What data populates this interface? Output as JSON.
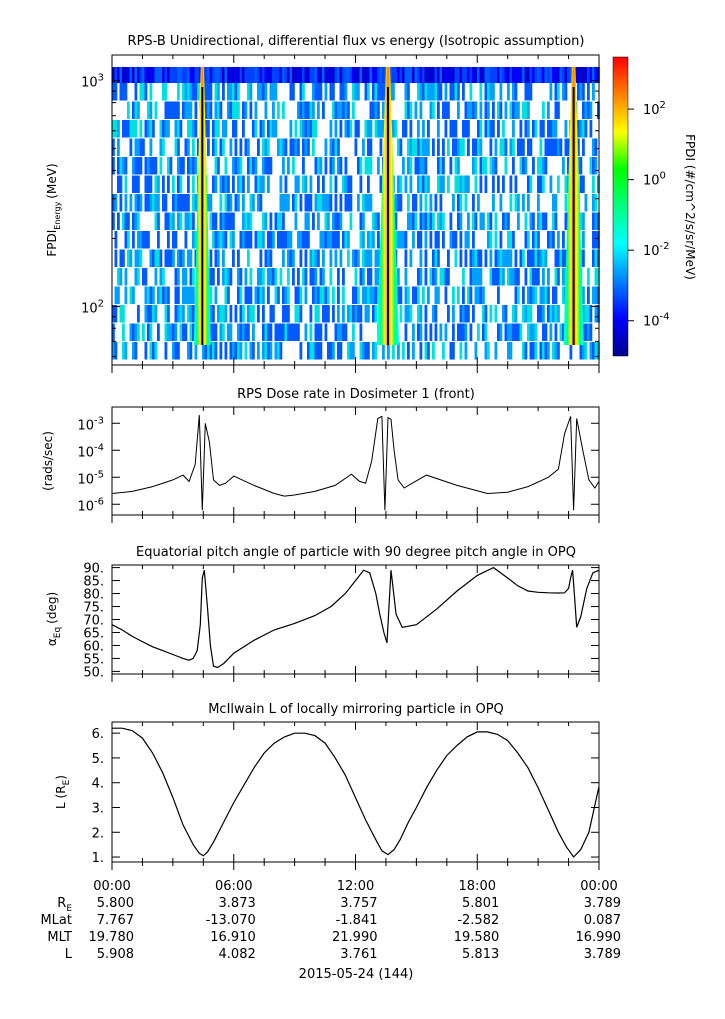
{
  "chart_data": [
    {
      "type": "heatmap",
      "title": "RPS-B  Unidirectional, differential flux vs energy (Isotropic assumption)",
      "ylabel": "FPDI",
      "ylabel_sub": "Energy",
      "ylabel_unit": "(MeV)",
      "yscale": "log",
      "ylim": [
        55,
        1300
      ],
      "ytick_base": "10",
      "yticks": [
        {
          "value": 100,
          "exp": "2"
        },
        {
          "value": 1000,
          "exp": "3"
        }
      ],
      "xlim": [
        0,
        24
      ],
      "colorbar": {
        "label": "FPDI (#/cm^2/s/sr/MeV)",
        "scale": "log",
        "range": [
          1e-05,
          3000
        ],
        "ticks": [
          {
            "value": 0.0001,
            "exp": "-4"
          },
          {
            "value": 0.01,
            "exp": "-2"
          },
          {
            "value": 1,
            "exp": "0"
          },
          {
            "value": 100,
            "exp": "2"
          }
        ],
        "colors": [
          "#00008f",
          "#0000ff",
          "#0080ff",
          "#00ffff",
          "#00ff80",
          "#00ff00",
          "#ffff00",
          "#ff8000",
          "#ff0000"
        ]
      },
      "flux_bands": [
        {
          "center_hour": 4.45,
          "base_half_width_hours": 0.42,
          "top_half_width_hours": 0.08,
          "gap_hour": 4.45
        },
        {
          "center_hour": 13.6,
          "base_half_width_hours": 0.55,
          "top_half_width_hours": 0.1,
          "gap_hour": 13.6
        },
        {
          "center_hour": 22.75,
          "base_half_width_hours": 0.5,
          "top_half_width_hours": 0.09,
          "gap_hour": 22.75
        }
      ]
    },
    {
      "type": "line",
      "title": "RPS  Dose rate in Dosimeter 1 (front)",
      "ylabel": "(rads/sec)",
      "yscale": "log",
      "ylim": [
        4e-07,
        0.004
      ],
      "ytick_base": "10",
      "yticks": [
        {
          "value": 1e-06,
          "exp": "-6"
        },
        {
          "value": 1e-05,
          "exp": "-5"
        },
        {
          "value": 0.0001,
          "exp": "-4"
        },
        {
          "value": 0.001,
          "exp": "-3"
        }
      ],
      "xlim": [
        0,
        24
      ],
      "x": [
        0,
        1,
        2,
        3,
        3.5,
        3.8,
        4.1,
        4.3,
        4.45,
        4.6,
        4.8,
        5.0,
        5.3,
        5.6,
        6.0,
        7.0,
        8.0,
        8.5,
        9.0,
        10.0,
        11.0,
        11.8,
        12.2,
        12.5,
        12.8,
        13.1,
        13.3,
        13.45,
        13.6,
        13.75,
        13.9,
        14.1,
        14.4,
        14.8,
        15.5,
        17,
        18.5,
        19.5,
        20.5,
        21.5,
        22.0,
        22.3,
        22.6,
        22.75,
        22.9,
        23.2,
        23.5,
        23.8,
        24
      ],
      "values": [
        2.5e-06,
        3e-06,
        4.5e-06,
        8e-06,
        1.2e-05,
        7e-06,
        3e-05,
        0.002,
        6e-07,
        0.001,
        0.0002,
        8e-06,
        5e-06,
        6e-06,
        1.1e-05,
        5e-06,
        2.5e-06,
        2e-06,
        2.2e-06,
        3e-06,
        5e-06,
        1.3e-05,
        7e-06,
        6e-06,
        4e-05,
        0.0015,
        0.0018,
        6e-07,
        0.0016,
        0.0014,
        0.0001,
        8e-06,
        4e-06,
        6e-06,
        1.2e-05,
        5e-06,
        2.5e-06,
        2.8e-06,
        4.5e-06,
        1e-05,
        2e-05,
        0.0004,
        0.0018,
        6e-07,
        0.0015,
        0.0001,
        8e-06,
        4e-06,
        7e-06
      ]
    },
    {
      "type": "line",
      "title": "Equatorial pitch angle of particle with 90 degree pitch angle in OPQ",
      "ylabel": "α",
      "ylabel_sub": "Eq",
      "ylabel_unit": "(deg)",
      "ylim": [
        49,
        91
      ],
      "yticks": [
        50,
        55,
        60,
        65,
        70,
        75,
        80,
        85,
        90
      ],
      "ytick_labels": [
        "50.",
        "55.",
        "60.",
        "65.",
        "70.",
        "75.",
        "80.",
        "85.",
        "90."
      ],
      "xlim": [
        0,
        24
      ],
      "x": [
        0,
        0.5,
        1.0,
        1.5,
        2.0,
        2.5,
        3.0,
        3.5,
        3.8,
        4.0,
        4.2,
        4.35,
        4.45,
        4.55,
        4.7,
        4.85,
        5.0,
        5.2,
        5.5,
        6.0,
        7.0,
        8.0,
        9.0,
        10.0,
        10.8,
        11.5,
        12.0,
        12.4,
        12.7,
        13.0,
        13.2,
        13.4,
        13.55,
        13.75,
        14.0,
        14.3,
        15.0,
        16.0,
        17.0,
        18.0,
        18.8,
        19.5,
        20.0,
        20.5,
        21.0,
        21.5,
        22.0,
        22.3,
        22.5,
        22.6,
        22.7,
        22.8,
        22.9,
        23.1,
        23.4,
        23.7,
        24.0
      ],
      "values": [
        68,
        66,
        63.5,
        61.5,
        59.5,
        58,
        56.5,
        55,
        54.3,
        55,
        58,
        68,
        86,
        89,
        75,
        60,
        52,
        51.5,
        53,
        57,
        62,
        66,
        68.5,
        71.5,
        75,
        80,
        85,
        89,
        88,
        80,
        72,
        65,
        61,
        89,
        72,
        67,
        68,
        74,
        81,
        87,
        90,
        86,
        83,
        81,
        80.5,
        80.3,
        80.2,
        80.3,
        82,
        86,
        89,
        78,
        67,
        71,
        82,
        88,
        89
      ]
    },
    {
      "type": "line",
      "title": "McIlwain L of locally mirroring particle in OPQ",
      "ylabel": "L (R",
      "ylabel_sub": "E",
      "ylabel_close": ")",
      "ylim": [
        0.8,
        6.45
      ],
      "yticks": [
        1,
        2,
        3,
        4,
        5,
        6
      ],
      "ytick_labels": [
        "1.",
        "2.",
        "3.",
        "4.",
        "5.",
        "6."
      ],
      "xlim": [
        0,
        24
      ],
      "x": [
        0,
        0.5,
        1.0,
        1.5,
        2.0,
        2.5,
        3.0,
        3.5,
        4.0,
        4.3,
        4.5,
        4.7,
        5.0,
        5.5,
        6.0,
        6.5,
        7.0,
        7.5,
        8.0,
        8.5,
        9.0,
        9.5,
        10.0,
        10.5,
        11.0,
        11.5,
        12.0,
        12.5,
        13.0,
        13.3,
        13.6,
        13.9,
        14.2,
        14.6,
        15.0,
        15.5,
        16.0,
        16.5,
        17.0,
        17.5,
        18.0,
        18.5,
        19.0,
        19.5,
        20.0,
        20.5,
        21.0,
        21.5,
        22.0,
        22.4,
        22.75,
        23.1,
        23.5,
        24.0
      ],
      "values": [
        6.2,
        6.2,
        6.1,
        5.8,
        5.2,
        4.4,
        3.4,
        2.3,
        1.5,
        1.15,
        1.05,
        1.2,
        1.6,
        2.4,
        3.2,
        3.9,
        4.6,
        5.2,
        5.6,
        5.85,
        6.0,
        6.0,
        5.9,
        5.6,
        5.0,
        4.3,
        3.4,
        2.5,
        1.7,
        1.25,
        1.1,
        1.3,
        1.7,
        2.4,
        3.0,
        3.8,
        4.5,
        5.1,
        5.5,
        5.85,
        6.05,
        6.05,
        5.95,
        5.7,
        5.2,
        4.6,
        3.8,
        2.9,
        2.0,
        1.4,
        1.0,
        1.3,
        2.0,
        3.85
      ]
    }
  ],
  "xaxis": {
    "tick_labels": [
      "00:00",
      "06:00",
      "12:00",
      "18:00",
      "00:00"
    ],
    "date_label": "2015-05-24 (144)",
    "ephemeris": [
      {
        "label": "R",
        "sub": "E",
        "values": [
          "5.800",
          "3.873",
          "3.757",
          "5.801",
          "3.789"
        ]
      },
      {
        "label": "MLat",
        "sub": "",
        "values": [
          "7.767",
          "-13.070",
          "-1.841",
          "-2.582",
          "0.087"
        ]
      },
      {
        "label": "MLT",
        "sub": "",
        "values": [
          "19.780",
          "16.910",
          "21.990",
          "19.580",
          "16.990"
        ]
      },
      {
        "label": "L",
        "sub": "",
        "values": [
          "5.908",
          "4.082",
          "3.761",
          "5.813",
          "3.789"
        ]
      }
    ]
  }
}
